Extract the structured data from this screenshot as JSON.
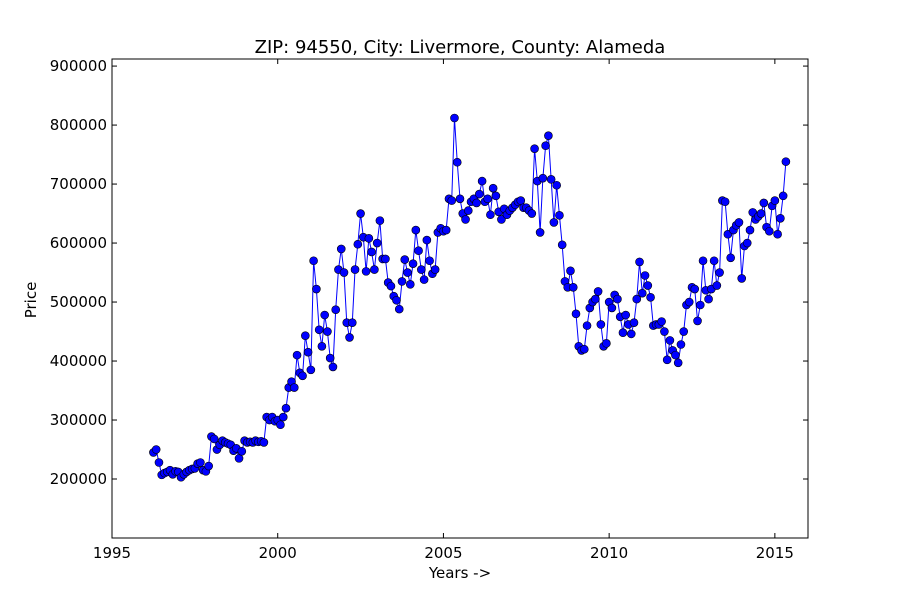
{
  "chart_data": {
    "type": "line",
    "title": "ZIP: 94550, City: Livermore, County: Alameda",
    "xlabel": "Years ->",
    "ylabel": "Price",
    "color": "#0000ff",
    "marker": "circle",
    "xlim": [
      1995,
      2016
    ],
    "ylim": [
      100000,
      912000
    ],
    "xticks": [
      1995,
      2000,
      2005,
      2010,
      2015
    ],
    "yticks": [
      200000,
      300000,
      400000,
      500000,
      600000,
      700000,
      800000,
      900000
    ],
    "x": [
      1996.25,
      1996.333,
      1996.417,
      1996.5,
      1996.583,
      1996.667,
      1996.75,
      1996.833,
      1996.917,
      1997.0,
      1997.083,
      1997.167,
      1997.25,
      1997.333,
      1997.417,
      1997.5,
      1997.583,
      1997.667,
      1997.75,
      1997.833,
      1997.917,
      1998.0,
      1998.083,
      1998.167,
      1998.25,
      1998.333,
      1998.417,
      1998.5,
      1998.583,
      1998.667,
      1998.75,
      1998.833,
      1998.917,
      1999.0,
      1999.083,
      1999.167,
      1999.25,
      1999.333,
      1999.417,
      1999.5,
      1999.583,
      1999.667,
      1999.75,
      1999.833,
      1999.917,
      2000.0,
      2000.083,
      2000.167,
      2000.25,
      2000.333,
      2000.417,
      2000.5,
      2000.583,
      2000.667,
      2000.75,
      2000.833,
      2000.917,
      2001.0,
      2001.083,
      2001.167,
      2001.25,
      2001.333,
      2001.417,
      2001.5,
      2001.583,
      2001.667,
      2001.75,
      2001.833,
      2001.917,
      2002.0,
      2002.083,
      2002.167,
      2002.25,
      2002.333,
      2002.417,
      2002.5,
      2002.583,
      2002.667,
      2002.75,
      2002.833,
      2002.917,
      2003.0,
      2003.083,
      2003.167,
      2003.25,
      2003.333,
      2003.417,
      2003.5,
      2003.583,
      2003.667,
      2003.75,
      2003.833,
      2003.917,
      2004.0,
      2004.083,
      2004.167,
      2004.25,
      2004.333,
      2004.417,
      2004.5,
      2004.583,
      2004.667,
      2004.75,
      2004.833,
      2004.917,
      2005.0,
      2005.083,
      2005.167,
      2005.25,
      2005.333,
      2005.417,
      2005.5,
      2005.583,
      2005.667,
      2005.75,
      2005.833,
      2005.917,
      2006.0,
      2006.083,
      2006.167,
      2006.25,
      2006.333,
      2006.417,
      2006.5,
      2006.583,
      2006.667,
      2006.75,
      2006.833,
      2006.917,
      2007.0,
      2007.083,
      2007.167,
      2007.25,
      2007.333,
      2007.417,
      2007.5,
      2007.583,
      2007.667,
      2007.75,
      2007.833,
      2007.917,
      2008.0,
      2008.083,
      2008.167,
      2008.25,
      2008.333,
      2008.417,
      2008.5,
      2008.583,
      2008.667,
      2008.75,
      2008.833,
      2008.917,
      2009.0,
      2009.083,
      2009.167,
      2009.25,
      2009.333,
      2009.417,
      2009.5,
      2009.583,
      2009.667,
      2009.75,
      2009.833,
      2009.917,
      2010.0,
      2010.083,
      2010.167,
      2010.25,
      2010.333,
      2010.417,
      2010.5,
      2010.583,
      2010.667,
      2010.75,
      2010.833,
      2010.917,
      2011.0,
      2011.083,
      2011.167,
      2011.25,
      2011.333,
      2011.417,
      2011.5,
      2011.583,
      2011.667,
      2011.75,
      2011.833,
      2011.917,
      2012.0,
      2012.083,
      2012.167,
      2012.25,
      2012.333,
      2012.417,
      2012.5,
      2012.583,
      2012.667,
      2012.75,
      2012.833,
      2012.917,
      2013.0,
      2013.083,
      2013.167,
      2013.25,
      2013.333,
      2013.417,
      2013.5,
      2013.583,
      2013.667,
      2013.75,
      2013.833,
      2013.917,
      2014.0,
      2014.083,
      2014.167,
      2014.25,
      2014.333,
      2014.417,
      2014.5,
      2014.583,
      2014.667,
      2014.75,
      2014.833,
      2014.917,
      2015.0,
      2015.083,
      2015.167,
      2015.25,
      2015.333
    ],
    "values": [
      245000,
      250000,
      228000,
      207000,
      210000,
      212000,
      215000,
      208000,
      213000,
      212000,
      203000,
      208000,
      212000,
      215000,
      217000,
      218000,
      226000,
      228000,
      215000,
      213000,
      222000,
      272000,
      268000,
      250000,
      258000,
      265000,
      262000,
      260000,
      258000,
      248000,
      252000,
      235000,
      247000,
      265000,
      262000,
      263000,
      262000,
      265000,
      263000,
      264000,
      262000,
      305000,
      300000,
      305000,
      298000,
      300000,
      292000,
      305000,
      320000,
      355000,
      365000,
      355000,
      410000,
      380000,
      375000,
      443000,
      415000,
      385000,
      570000,
      522000,
      453000,
      425000,
      478000,
      450000,
      405000,
      390000,
      487000,
      555000,
      590000,
      550000,
      465000,
      440000,
      465000,
      555000,
      598000,
      650000,
      610000,
      552000,
      608000,
      585000,
      555000,
      600000,
      638000,
      573000,
      573000,
      533000,
      527000,
      510000,
      503000,
      488000,
      535000,
      572000,
      550000,
      530000,
      565000,
      622000,
      587000,
      555000,
      538000,
      605000,
      570000,
      548000,
      555000,
      618000,
      625000,
      620000,
      622000,
      675000,
      672000,
      812000,
      737000,
      675000,
      650000,
      640000,
      655000,
      670000,
      675000,
      668000,
      683000,
      705000,
      670000,
      675000,
      648000,
      693000,
      680000,
      653000,
      640000,
      658000,
      648000,
      655000,
      660000,
      665000,
      670000,
      672000,
      660000,
      660000,
      655000,
      650000,
      760000,
      705000,
      618000,
      710000,
      765000,
      782000,
      708000,
      635000,
      698000,
      647000,
      597000,
      535000,
      525000,
      553000,
      525000,
      480000,
      425000,
      418000,
      420000,
      460000,
      490000,
      500000,
      505000,
      518000,
      462000,
      425000,
      430000,
      500000,
      490000,
      512000,
      505000,
      475000,
      448000,
      478000,
      462000,
      446000,
      465000,
      505000,
      568000,
      515000,
      545000,
      528000,
      508000,
      460000,
      462000,
      462000,
      467000,
      450000,
      402000,
      435000,
      418000,
      410000,
      397000,
      428000,
      450000,
      495000,
      500000,
      525000,
      522000,
      468000,
      495000,
      570000,
      520000,
      505000,
      522000,
      570000,
      528000,
      550000,
      672000,
      670000,
      615000,
      575000,
      622000,
      630000,
      635000,
      540000,
      595000,
      600000,
      622000,
      652000,
      640000,
      645000,
      650000,
      668000,
      627000,
      620000,
      663000,
      672000,
      615000,
      642000,
      680000,
      738000
    ]
  }
}
